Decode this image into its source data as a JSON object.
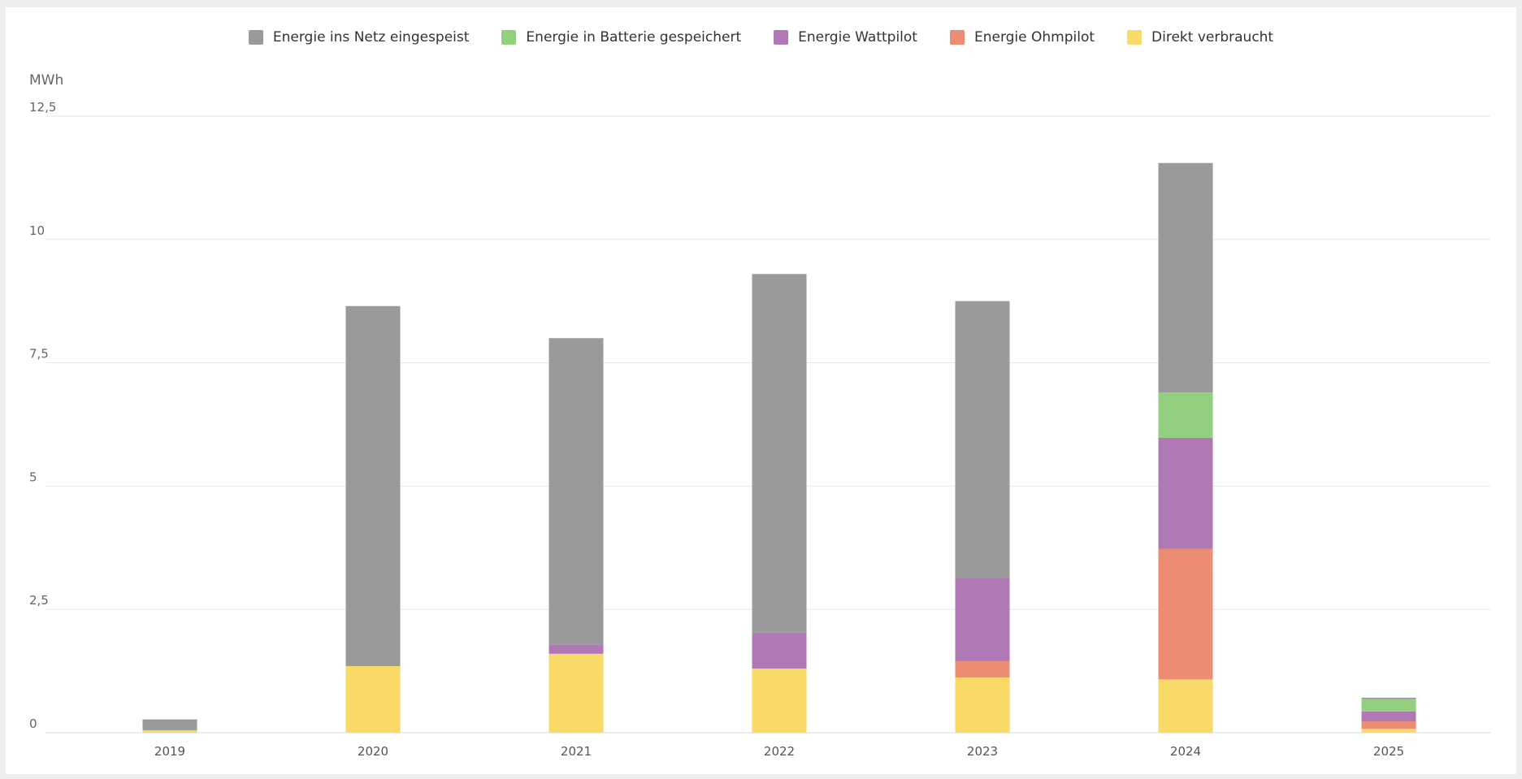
{
  "unit_label": "MWh",
  "chart_data": {
    "type": "bar",
    "stacked": true,
    "categories": [
      "2019",
      "2020",
      "2021",
      "2022",
      "2023",
      "2024",
      "2025"
    ],
    "ylim": [
      0,
      12.5
    ],
    "yticks": [
      0,
      2.5,
      5,
      7.5,
      10,
      12.5
    ],
    "ytick_labels": [
      "0",
      "2,5",
      "5",
      "7,5",
      "10",
      "12,5"
    ],
    "grid": true,
    "legend_position": "top-center",
    "series": [
      {
        "name": "Direkt verbraucht",
        "color": "#f9d967",
        "values": [
          0.05,
          1.35,
          1.6,
          1.3,
          1.12,
          1.08,
          0.08
        ]
      },
      {
        "name": "Energie Ohmpilot",
        "color": "#ec8c73",
        "values": [
          0,
          0,
          0,
          0,
          0.33,
          2.65,
          0.15
        ]
      },
      {
        "name": "Energie Wattpilot",
        "color": "#b078b5",
        "values": [
          0,
          0,
          0.18,
          0.73,
          1.68,
          2.25,
          0.2
        ]
      },
      {
        "name": "Energie in Batterie gespeichert",
        "color": "#92d07f",
        "values": [
          0,
          0,
          0,
          0,
          0,
          0.92,
          0.25
        ]
      },
      {
        "name": "Energie ins Netz eingespeist",
        "color": "#9a9a9a",
        "values": [
          0.22,
          7.3,
          6.22,
          7.27,
          5.62,
          4.65,
          0.03
        ]
      }
    ],
    "legend_order": [
      "Energie ins Netz eingespeist",
      "Energie in Batterie gespeichert",
      "Energie Wattpilot",
      "Energie Ohmpilot",
      "Direkt verbraucht"
    ]
  }
}
